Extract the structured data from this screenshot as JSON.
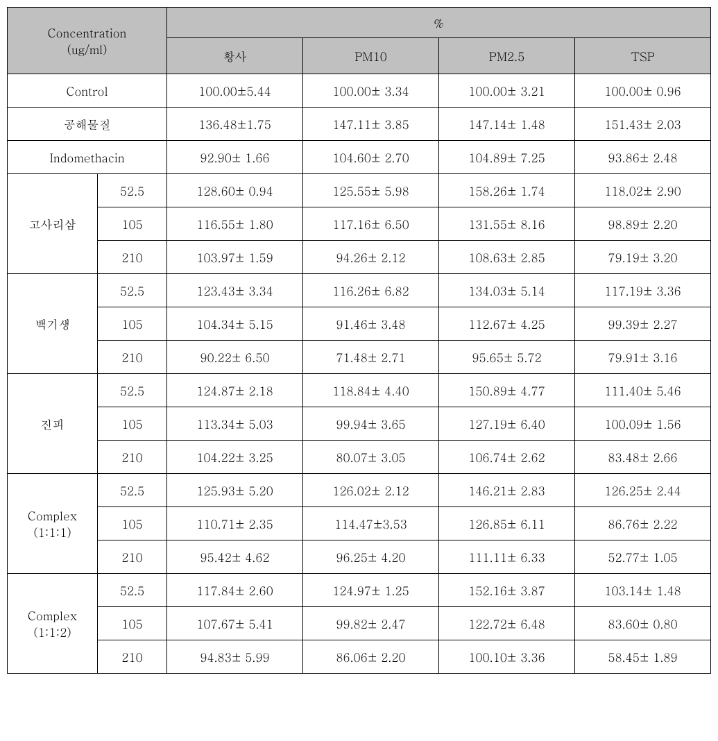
{
  "table": {
    "type": "table",
    "background_color": "#ffffff",
    "header_background": "#c0c0c0",
    "border_color": "#000000",
    "font_family": "Batang, Times New Roman, serif",
    "font_size": 17,
    "columns": {
      "concentration_label": "Concentration",
      "concentration_unit": "(ug/ml)",
      "percent_label": "%",
      "sub_headers": [
        "황사",
        "PM10",
        "PM2.5",
        "TSP"
      ]
    },
    "simple_rows": [
      {
        "label": "Control",
        "values": [
          "100.00±5.44",
          "100.00± 3.34",
          "100.00± 3.21",
          "100.00± 0.96"
        ]
      },
      {
        "label": "공해물질",
        "values": [
          "136.48±1.75",
          "147.11± 3.85",
          "147.14± 1.48",
          "151.43± 2.03"
        ]
      },
      {
        "label": "Indomethacin",
        "values": [
          "92.90± 1.66",
          "104.60± 2.70",
          "104.89± 7.25",
          "93.86± 2.48"
        ]
      }
    ],
    "groups": [
      {
        "label": "고사리삼",
        "rows": [
          {
            "conc": "52.5",
            "values": [
              "128.60± 0.94",
              "125.55± 5.98",
              "158.26± 1.74",
              "118.02± 2.90"
            ]
          },
          {
            "conc": "105",
            "values": [
              "116.55± 1.80",
              "117.16± 6.50",
              "131.55± 8.16",
              "98.89± 2.20"
            ]
          },
          {
            "conc": "210",
            "values": [
              "103.97± 1.59",
              "94.26± 2.12",
              "108.63± 2.85",
              "79.19± 3.20"
            ]
          }
        ]
      },
      {
        "label": "백기생",
        "rows": [
          {
            "conc": "52.5",
            "values": [
              "123.43± 3.34",
              "116.26± 6.82",
              "134.03± 5.14",
              "117.19± 3.36"
            ]
          },
          {
            "conc": "105",
            "values": [
              "104.34± 5.15",
              "91.46± 3.48",
              "112.67± 4.25",
              "99.39± 2.27"
            ]
          },
          {
            "conc": "210",
            "values": [
              "90.22± 6.50",
              "71.48± 2.71",
              "95.65± 5.72",
              "79.91± 3.16"
            ]
          }
        ]
      },
      {
        "label": "진피",
        "rows": [
          {
            "conc": "52.5",
            "values": [
              "124.87± 2.18",
              "118.84± 4.40",
              "150.89± 4.77",
              "111.40± 5.46"
            ]
          },
          {
            "conc": "105",
            "values": [
              "113.34± 5.03",
              "99.94± 3.65",
              "127.19± 6.40",
              "100.09± 1.56"
            ]
          },
          {
            "conc": "210",
            "values": [
              "104.22± 3.25",
              "80.07± 3.05",
              "106.74± 2.62",
              "83.48± 2.66"
            ]
          }
        ]
      },
      {
        "label": "Complex\n(1:1:1)",
        "rows": [
          {
            "conc": "52.5",
            "values": [
              "125.93± 5.20",
              "126.02± 2.12",
              "146.21± 2.83",
              "126.25± 2.44"
            ]
          },
          {
            "conc": "105",
            "values": [
              "110.71± 2.35",
              "114.47±3.53",
              "126.85± 6.11",
              "86.76± 2.22"
            ]
          },
          {
            "conc": "210",
            "values": [
              "95.42± 4.62",
              "96.25± 4.20",
              "111.11± 6.33",
              "52.77± 1.05"
            ]
          }
        ]
      },
      {
        "label": "Complex\n(1:1:2)",
        "rows": [
          {
            "conc": "52.5",
            "values": [
              "117.84± 2.60",
              "124.97± 1.25",
              "152.16± 3.87",
              "103.14± 1.48"
            ]
          },
          {
            "conc": "105",
            "values": [
              "107.67± 5.41",
              "99.82± 2.47",
              "122.72± 6.48",
              "83.60± 0.80"
            ]
          },
          {
            "conc": "210",
            "values": [
              "94.83± 5.99",
              "86.06± 2.20",
              "100.10± 3.36",
              "58.45± 1.89"
            ]
          }
        ]
      }
    ]
  }
}
